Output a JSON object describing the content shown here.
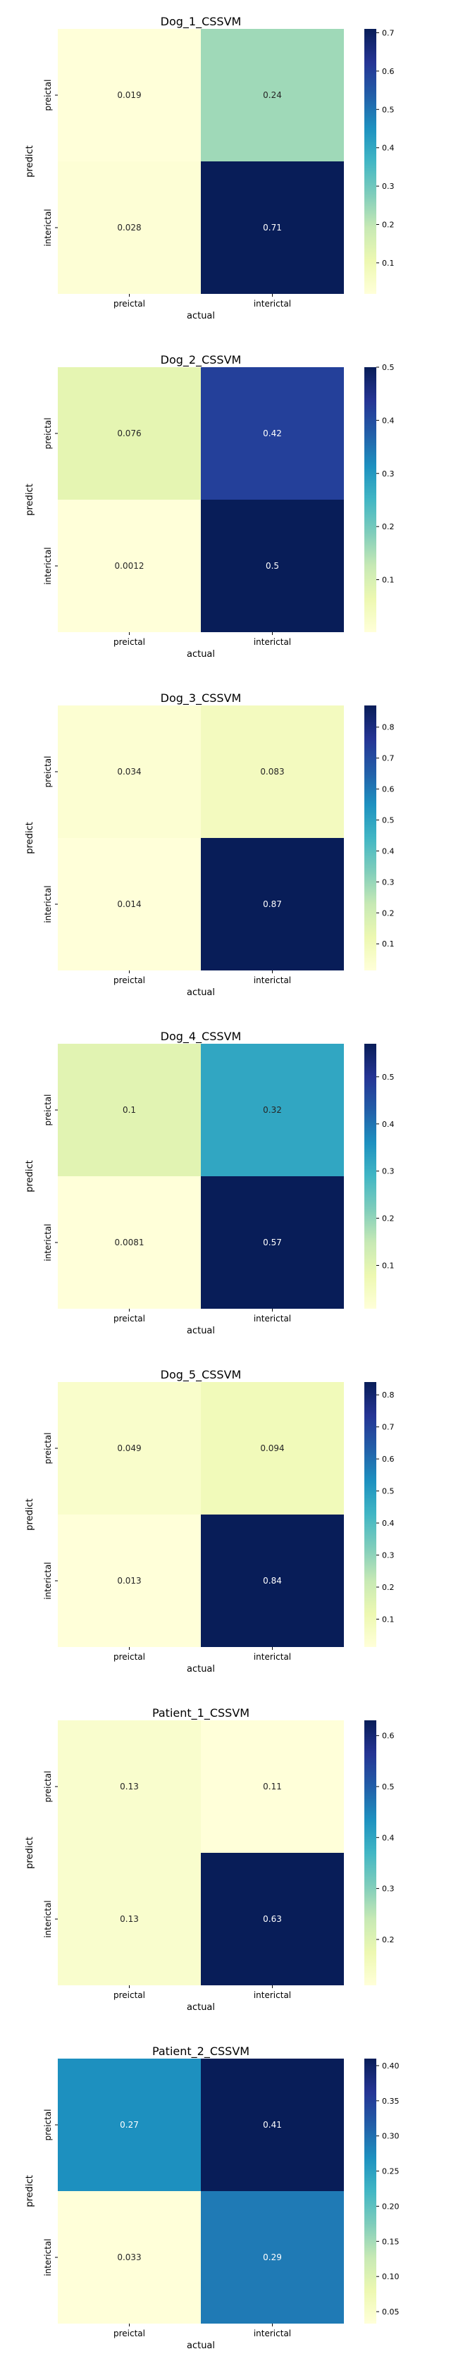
{
  "chart_data": [
    {
      "type": "heatmap",
      "title": "Dog_1_CSSVM",
      "xlabel": "actual",
      "ylabel": "predict",
      "x_categories": [
        "preictal",
        "interictal"
      ],
      "y_categories": [
        "preictal",
        "interictal"
      ],
      "values": [
        [
          0.019,
          0.24
        ],
        [
          0.028,
          0.71
        ]
      ],
      "cell_labels": [
        [
          "0.019",
          "0.24"
        ],
        [
          "0.028",
          "0.71"
        ]
      ],
      "colormap": "YlGnBu",
      "colorbar": {
        "range": [
          0.019,
          0.71
        ],
        "ticks": [
          0.1,
          0.2,
          0.3,
          0.4,
          0.5,
          0.6,
          0.7
        ],
        "tick_labels": [
          "0.1",
          "0.2",
          "0.3",
          "0.4",
          "0.5",
          "0.6",
          "0.7"
        ]
      }
    },
    {
      "type": "heatmap",
      "title": "Dog_2_CSSVM",
      "xlabel": "actual",
      "ylabel": "predict",
      "x_categories": [
        "preictal",
        "interictal"
      ],
      "y_categories": [
        "preictal",
        "interictal"
      ],
      "values": [
        [
          0.076,
          0.42
        ],
        [
          0.0012,
          0.5
        ]
      ],
      "cell_labels": [
        [
          "0.076",
          "0.42"
        ],
        [
          "0.0012",
          "0.5"
        ]
      ],
      "colormap": "YlGnBu",
      "colorbar": {
        "range": [
          0.0012,
          0.5
        ],
        "ticks": [
          0.1,
          0.2,
          0.3,
          0.4,
          0.5
        ],
        "tick_labels": [
          "0.1",
          "0.2",
          "0.3",
          "0.4",
          "0.5"
        ]
      }
    },
    {
      "type": "heatmap",
      "title": "Dog_3_CSSVM",
      "xlabel": "actual",
      "ylabel": "predict",
      "x_categories": [
        "preictal",
        "interictal"
      ],
      "y_categories": [
        "preictal",
        "interictal"
      ],
      "values": [
        [
          0.034,
          0.083
        ],
        [
          0.014,
          0.87
        ]
      ],
      "cell_labels": [
        [
          "0.034",
          "0.083"
        ],
        [
          "0.014",
          "0.87"
        ]
      ],
      "colormap": "YlGnBu",
      "colorbar": {
        "range": [
          0.014,
          0.87
        ],
        "ticks": [
          0.1,
          0.2,
          0.3,
          0.4,
          0.5,
          0.6,
          0.7,
          0.8
        ],
        "tick_labels": [
          "0.1",
          "0.2",
          "0.3",
          "0.4",
          "0.5",
          "0.6",
          "0.7",
          "0.8"
        ]
      }
    },
    {
      "type": "heatmap",
      "title": "Dog_4_CSSVM",
      "xlabel": "actual",
      "ylabel": "predict",
      "x_categories": [
        "preictal",
        "interictal"
      ],
      "y_categories": [
        "preictal",
        "interictal"
      ],
      "values": [
        [
          0.1,
          0.32
        ],
        [
          0.0081,
          0.57
        ]
      ],
      "cell_labels": [
        [
          "0.1",
          "0.32"
        ],
        [
          "0.0081",
          "0.57"
        ]
      ],
      "colormap": "YlGnBu",
      "colorbar": {
        "range": [
          0.0081,
          0.57
        ],
        "ticks": [
          0.1,
          0.2,
          0.3,
          0.4,
          0.5
        ],
        "tick_labels": [
          "0.1",
          "0.2",
          "0.3",
          "0.4",
          "0.5"
        ]
      }
    },
    {
      "type": "heatmap",
      "title": "Dog_5_CSSVM",
      "xlabel": "actual",
      "ylabel": "predict",
      "x_categories": [
        "preictal",
        "interictal"
      ],
      "y_categories": [
        "preictal",
        "interictal"
      ],
      "values": [
        [
          0.049,
          0.094
        ],
        [
          0.013,
          0.84
        ]
      ],
      "cell_labels": [
        [
          "0.049",
          "0.094"
        ],
        [
          "0.013",
          "0.84"
        ]
      ],
      "colormap": "YlGnBu",
      "colorbar": {
        "range": [
          0.013,
          0.84
        ],
        "ticks": [
          0.1,
          0.2,
          0.3,
          0.4,
          0.5,
          0.6,
          0.7,
          0.8
        ],
        "tick_labels": [
          "0.1",
          "0.2",
          "0.3",
          "0.4",
          "0.5",
          "0.6",
          "0.7",
          "0.8"
        ]
      }
    },
    {
      "type": "heatmap",
      "title": "Patient_1_CSSVM",
      "xlabel": "actual",
      "ylabel": "predict",
      "x_categories": [
        "preictal",
        "interictal"
      ],
      "y_categories": [
        "preictal",
        "interictal"
      ],
      "values": [
        [
          0.13,
          0.11
        ],
        [
          0.13,
          0.63
        ]
      ],
      "cell_labels": [
        [
          "0.13",
          "0.11"
        ],
        [
          "0.13",
          "0.63"
        ]
      ],
      "colormap": "YlGnBu",
      "colorbar": {
        "range": [
          0.11,
          0.63
        ],
        "ticks": [
          0.2,
          0.3,
          0.4,
          0.5,
          0.6
        ],
        "tick_labels": [
          "0.2",
          "0.3",
          "0.4",
          "0.5",
          "0.6"
        ]
      }
    },
    {
      "type": "heatmap",
      "title": "Patient_2_CSSVM",
      "xlabel": "actual",
      "ylabel": "predict",
      "x_categories": [
        "preictal",
        "interictal"
      ],
      "y_categories": [
        "preictal",
        "interictal"
      ],
      "values": [
        [
          0.27,
          0.41
        ],
        [
          0.033,
          0.29
        ]
      ],
      "cell_labels": [
        [
          "0.27",
          "0.41"
        ],
        [
          "0.033",
          "0.29"
        ]
      ],
      "colormap": "YlGnBu",
      "colorbar": {
        "range": [
          0.033,
          0.41
        ],
        "ticks": [
          0.05,
          0.1,
          0.15,
          0.2,
          0.25,
          0.3,
          0.35,
          0.4
        ],
        "tick_labels": [
          "0.05",
          "0.10",
          "0.15",
          "0.20",
          "0.25",
          "0.30",
          "0.35",
          "0.40"
        ]
      }
    }
  ]
}
